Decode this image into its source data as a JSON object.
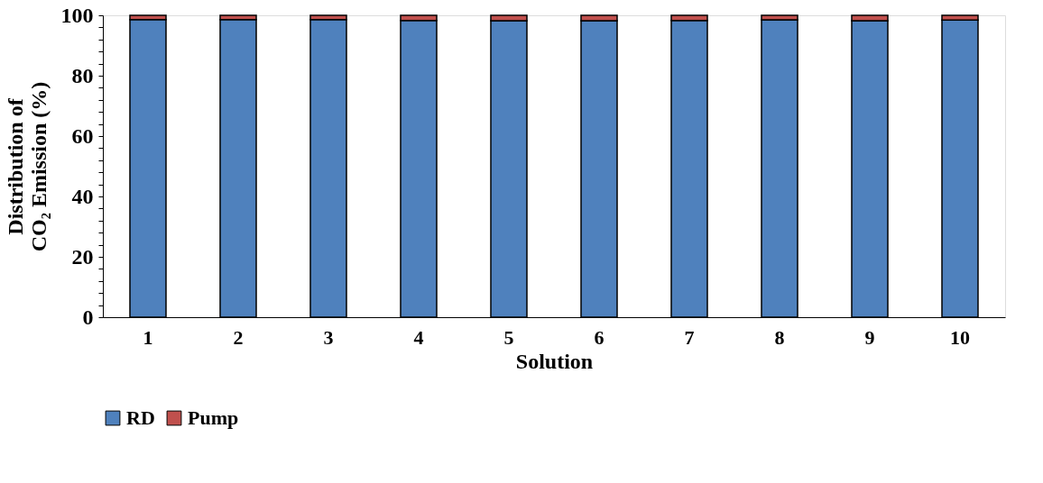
{
  "chart_data": {
    "type": "bar",
    "stacked": true,
    "xlabel": "Solution",
    "ylabel": "Distribution of\nCO₂ Emission (%)",
    "categories": [
      "1",
      "2",
      "3",
      "4",
      "5",
      "6",
      "7",
      "8",
      "9",
      "10"
    ],
    "series": [
      {
        "name": "RD",
        "color": "#4f81bd",
        "values": [
          98.6,
          98.6,
          98.6,
          98.3,
          98.2,
          98.2,
          98.3,
          98.5,
          98.2,
          98.4
        ]
      },
      {
        "name": "Pump",
        "color": "#c0504d",
        "values": [
          1.4,
          1.4,
          1.4,
          1.7,
          1.8,
          1.8,
          1.7,
          1.5,
          1.8,
          1.6
        ]
      }
    ],
    "ylim": [
      0,
      100
    ],
    "yticks": [
      0,
      {
        "value": 4,
        "label": null
      },
      {
        "value": 8,
        "label": null
      },
      {
        "value": 12,
        "label": null
      },
      {
        "value": 16,
        "label": null
      },
      20,
      {
        "value": 24,
        "label": null
      },
      {
        "value": 28,
        "label": null
      },
      {
        "value": 32,
        "label": null
      },
      {
        "value": 36,
        "label": null
      },
      40,
      {
        "value": 44,
        "label": null
      },
      {
        "value": 48,
        "label": null
      },
      {
        "value": 52,
        "label": null
      },
      {
        "value": 56,
        "label": null
      },
      60,
      {
        "value": 64,
        "label": null
      },
      {
        "value": 68,
        "label": null
      },
      {
        "value": 72,
        "label": null
      },
      {
        "value": 76,
        "label": null
      },
      80,
      {
        "value": 84,
        "label": null
      },
      {
        "value": 88,
        "label": null
      },
      {
        "value": 92,
        "label": null
      },
      {
        "value": 96,
        "label": null
      },
      100
    ],
    "grid": false,
    "legend": "bottom"
  }
}
